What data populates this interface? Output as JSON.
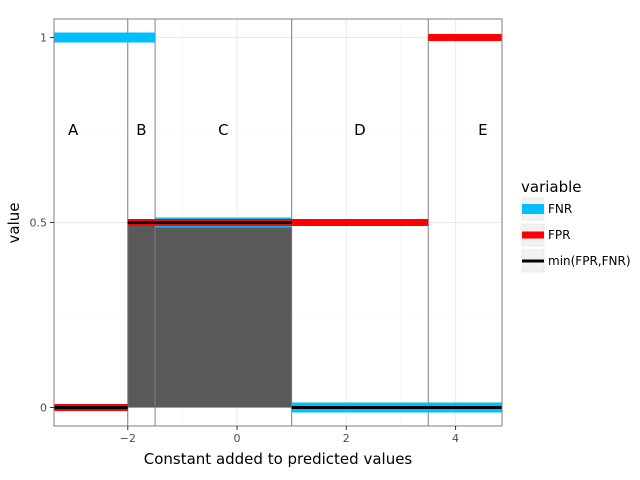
{
  "chart_data": {
    "type": "line",
    "xlabel": "Constant added to predicted values",
    "ylabel": "value",
    "xlim": [
      -3.35,
      4.85
    ],
    "ylim": [
      -0.05,
      1.05
    ],
    "x_ticks": [
      -2,
      0,
      2,
      4
    ],
    "x_tick_labels": [
      "−2",
      "0",
      "2",
      "4"
    ],
    "y_ticks": [
      0,
      0.5,
      1
    ],
    "y_tick_labels": [
      "0",
      "0.5",
      "1"
    ],
    "grid": true,
    "legend_title": "variable",
    "legend_position": "right",
    "series": [
      {
        "name": "FNR",
        "color": "#00bfff",
        "segments": [
          [
            -3.35,
            -1.5,
            1
          ],
          [
            -1.5,
            1,
            0.5
          ],
          [
            1,
            4.85,
            0
          ]
        ]
      },
      {
        "name": "FPR",
        "color": "#ff0000",
        "segments": [
          [
            -3.35,
            -2,
            0
          ],
          [
            -2,
            3.5,
            0.5
          ],
          [
            3.5,
            4.85,
            1
          ]
        ]
      },
      {
        "name": "min(FPR,FNR)",
        "color": "#000000",
        "segments": [
          [
            -3.35,
            -2,
            0
          ],
          [
            -2,
            1,
            0.5
          ],
          [
            1,
            4.85,
            0
          ]
        ]
      }
    ],
    "shaded_area": {
      "x_from": -2,
      "x_to": 1,
      "y_from": 0,
      "y_to": 0.5,
      "color": "#595959"
    },
    "region_boundaries": [
      -2,
      -1.5,
      1,
      3.5
    ],
    "regions": [
      {
        "label": "A",
        "x": -3.0
      },
      {
        "label": "B",
        "x": -1.75
      },
      {
        "label": "C",
        "x": -0.25
      },
      {
        "label": "D",
        "x": 2.25
      },
      {
        "label": "E",
        "x": 4.5
      }
    ],
    "region_label_y": 0.75
  }
}
